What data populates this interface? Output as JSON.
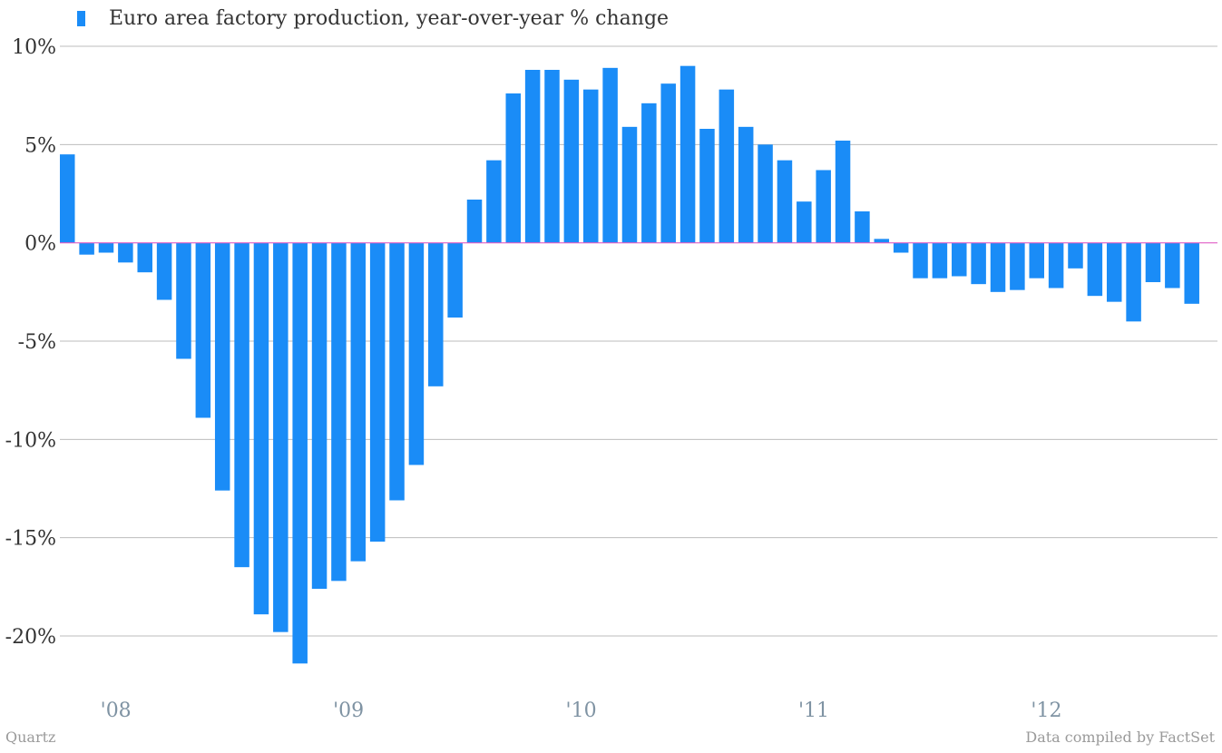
{
  "colors": {
    "bar": "#1a8cf7",
    "grid": "#bdbdbd",
    "zero_line": "#e05fc6",
    "tick_label": "#333333",
    "x_tick_label": "#7f93a3",
    "footer": "#9a9a9a"
  },
  "legend": {
    "label": "Euro area factory production, year-over-year % change",
    "icon": "square-swatch"
  },
  "footer": {
    "left": "Quartz",
    "right": "Data compiled by FactSet"
  },
  "chart_data": {
    "type": "bar",
    "title": "",
    "xlabel": "",
    "ylabel": "",
    "ylim": [
      -22.8,
      10.8
    ],
    "grid": true,
    "legend_position": "top-left",
    "y_ticks": [
      {
        "value": 10,
        "label": "10%"
      },
      {
        "value": 5,
        "label": "5%"
      },
      {
        "value": 0,
        "label": "0%"
      },
      {
        "value": -5,
        "label": "-5%"
      },
      {
        "value": -10,
        "label": "-10%"
      },
      {
        "value": -15,
        "label": "-15%"
      },
      {
        "value": -20,
        "label": "-20%"
      }
    ],
    "x_ticks": [
      {
        "index": 2.5,
        "label": "'08"
      },
      {
        "index": 14.5,
        "label": "'09"
      },
      {
        "index": 26.5,
        "label": "'10"
      },
      {
        "index": 38.5,
        "label": "'11"
      },
      {
        "index": 50.5,
        "label": "'12"
      }
    ],
    "series": [
      {
        "name": "Euro area factory production, year-over-year % change",
        "values": [
          4.5,
          -0.6,
          -0.5,
          -1.0,
          -1.5,
          -2.9,
          -5.9,
          -8.9,
          -12.6,
          -16.5,
          -18.9,
          -19.8,
          -21.4,
          -17.6,
          -17.2,
          -16.2,
          -15.2,
          -13.1,
          -11.3,
          -7.3,
          -3.8,
          2.2,
          4.2,
          7.6,
          8.8,
          8.8,
          8.3,
          7.8,
          8.9,
          5.9,
          7.1,
          8.1,
          9.0,
          5.8,
          7.8,
          5.9,
          5.0,
          4.2,
          2.1,
          3.7,
          5.2,
          1.6,
          0.2,
          -0.5,
          -1.8,
          -1.8,
          -1.7,
          -2.1,
          -2.5,
          -2.4,
          -1.8,
          -2.3,
          -1.3,
          -2.7,
          -3.0,
          -4.0,
          -2.0,
          -2.3,
          -3.1
        ]
      }
    ]
  }
}
